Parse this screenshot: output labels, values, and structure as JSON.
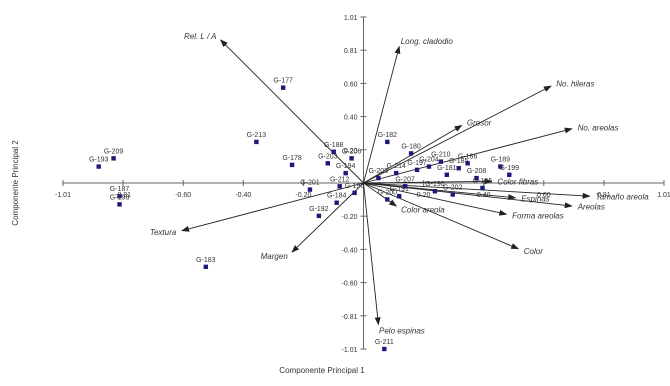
{
  "chart_data": {
    "type": "scatter",
    "subtype": "biplot",
    "xlabel": "Componente Principal 1",
    "ylabel": "Componente Principal 2",
    "xlim": [
      -1.01,
      1.01
    ],
    "ylim": [
      -1.01,
      1.01
    ],
    "x_ticks": [
      "-1.01",
      "-0.81",
      "-0.60",
      "-0.40",
      "-0.20",
      "0.00",
      "0.20",
      "0.40",
      "0.60",
      "0.81",
      "1.01"
    ],
    "y_ticks": [
      "1.01",
      "0.81",
      "0.60",
      "0.40",
      "0.20",
      "0.00",
      "-0.20",
      "-0.40",
      "-0.60",
      "-0.81",
      "-1.01"
    ],
    "grid": false,
    "colors": {
      "axis": "#666666",
      "point": "#1a1a7a",
      "arrow": "#222222",
      "text": "#333333"
    },
    "points": [
      {
        "label": "G-209",
        "x": -0.84,
        "y": 0.15
      },
      {
        "label": "G-193",
        "x": -0.89,
        "y": 0.1
      },
      {
        "label": "G-187",
        "x": -0.82,
        "y": -0.08
      },
      {
        "label": "G-198",
        "x": -0.82,
        "y": -0.13
      },
      {
        "label": "G-177",
        "x": -0.27,
        "y": 0.58
      },
      {
        "label": "G-213",
        "x": -0.36,
        "y": 0.25
      },
      {
        "label": "G-183",
        "x": -0.53,
        "y": -0.51
      },
      {
        "label": "G-211",
        "x": 0.07,
        "y": -1.01
      },
      {
        "label": "G-188",
        "x": -0.1,
        "y": 0.19
      },
      {
        "label": "G-182",
        "x": 0.08,
        "y": 0.25
      },
      {
        "label": "G-180",
        "x": 0.16,
        "y": 0.18
      },
      {
        "label": "G-178",
        "x": -0.24,
        "y": 0.11
      },
      {
        "label": "G-184",
        "x": -0.09,
        "y": -0.12
      },
      {
        "label": "G-192",
        "x": -0.15,
        "y": -0.2
      },
      {
        "label": "G-181",
        "x": 0.28,
        "y": 0.05
      },
      {
        "label": "G-185",
        "x": 0.32,
        "y": 0.09
      },
      {
        "label": "G-186",
        "x": 0.35,
        "y": 0.12
      },
      {
        "label": "G-189",
        "x": 0.46,
        "y": 0.1
      },
      {
        "label": "G-190",
        "x": 0.24,
        "y": -0.05
      },
      {
        "label": "G-191",
        "x": 0.12,
        "y": -0.08
      },
      {
        "label": "G-194",
        "x": -0.06,
        "y": 0.06
      },
      {
        "label": "G-195",
        "x": 0.4,
        "y": -0.03
      },
      {
        "label": "G-196",
        "x": -0.03,
        "y": -0.06
      },
      {
        "label": "G-197",
        "x": 0.18,
        "y": 0.08
      },
      {
        "label": "G-199",
        "x": 0.49,
        "y": 0.05
      },
      {
        "label": "G-200",
        "x": 0.08,
        "y": -0.1
      },
      {
        "label": "G-201",
        "x": -0.18,
        "y": -0.04
      },
      {
        "label": "G-202",
        "x": 0.3,
        "y": -0.07
      },
      {
        "label": "G-203",
        "x": -0.12,
        "y": 0.12
      },
      {
        "label": "G-204",
        "x": 0.22,
        "y": 0.1
      },
      {
        "label": "G-205",
        "x": 0.05,
        "y": 0.03
      },
      {
        "label": "G-206",
        "x": -0.04,
        "y": 0.15
      },
      {
        "label": "G-207",
        "x": 0.14,
        "y": -0.02
      },
      {
        "label": "G-208",
        "x": 0.38,
        "y": 0.03
      },
      {
        "label": "G-210",
        "x": 0.26,
        "y": 0.13
      },
      {
        "label": "G-212",
        "x": -0.08,
        "y": -0.02
      },
      {
        "label": "G-214",
        "x": 0.11,
        "y": 0.06
      }
    ],
    "vectors": [
      {
        "label": "Rel. L / A",
        "x": -0.48,
        "y": 0.87
      },
      {
        "label": "Long. cladodio",
        "x": 0.12,
        "y": 0.83
      },
      {
        "label": "No. hileras",
        "x": 0.63,
        "y": 0.59
      },
      {
        "label": "Grosor",
        "x": 0.33,
        "y": 0.35
      },
      {
        "label": "No. areolas",
        "x": 0.7,
        "y": 0.33
      },
      {
        "label": "Color fibras",
        "x": 0.43,
        "y": 0.01
      },
      {
        "label": "Espinas",
        "x": 0.51,
        "y": -0.09
      },
      {
        "label": "Tamaño areola",
        "x": 0.76,
        "y": -0.08
      },
      {
        "label": "Areolas",
        "x": 0.7,
        "y": -0.14
      },
      {
        "label": "Forma areolas",
        "x": 0.48,
        "y": -0.19
      },
      {
        "label": "Color",
        "x": 0.52,
        "y": -0.4
      },
      {
        "label": "Color areola",
        "x": 0.11,
        "y": -0.14
      },
      {
        "label": "Pelo espinas",
        "x": 0.05,
        "y": -0.86
      },
      {
        "label": "Margen",
        "x": -0.24,
        "y": -0.42
      },
      {
        "label": "Textura",
        "x": -0.61,
        "y": -0.29
      }
    ]
  }
}
